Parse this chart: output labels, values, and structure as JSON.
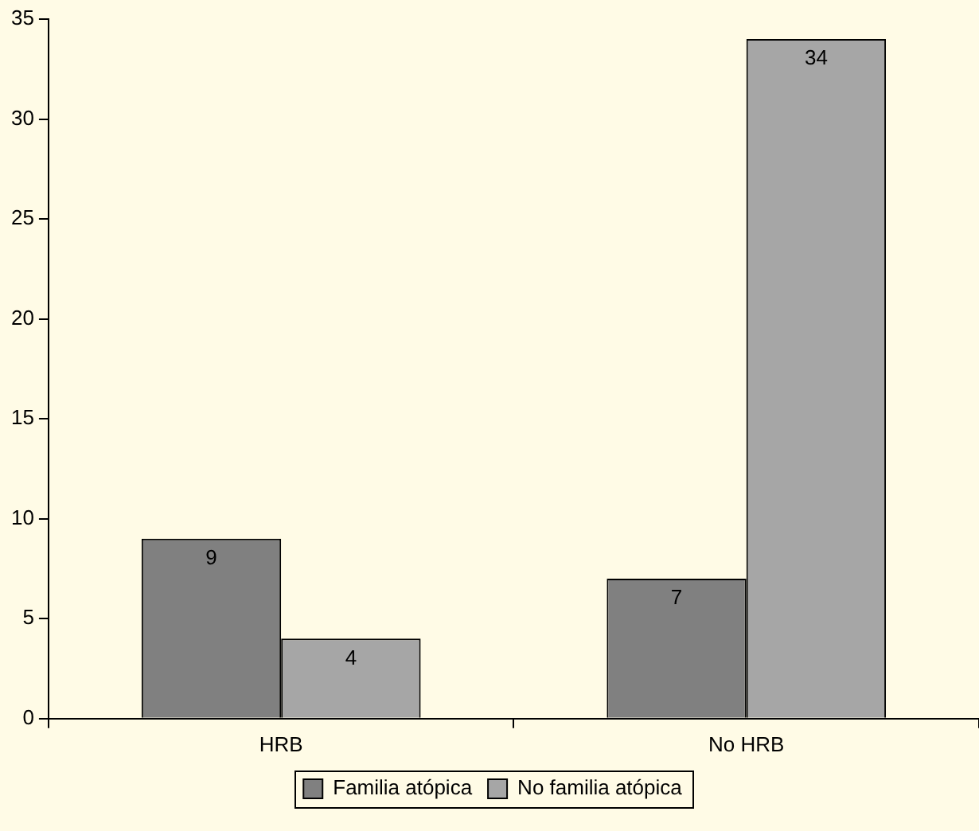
{
  "chart_data": {
    "type": "bar",
    "categories": [
      "HRB",
      "No HRB"
    ],
    "series": [
      {
        "name": "Familia atópica",
        "color": "#808080",
        "values": [
          9,
          7
        ]
      },
      {
        "name": "No familia atópica",
        "color": "#a6a6a6",
        "values": [
          4,
          34
        ]
      }
    ],
    "ylim": [
      0,
      35
    ],
    "yticks": [
      0,
      5,
      10,
      15,
      20,
      25,
      30,
      35
    ],
    "grid": false,
    "legend": "bottom",
    "data_labels": true
  }
}
